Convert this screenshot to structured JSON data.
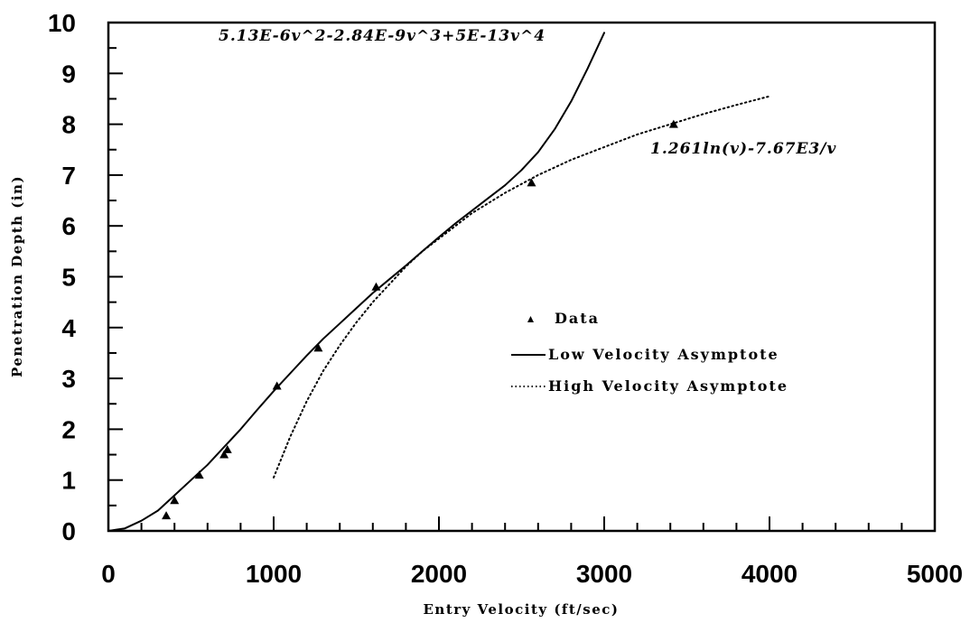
{
  "chart_data": {
    "type": "scatter",
    "xlabel": "Entry Velocity (ft/sec)",
    "ylabel": "Penetration Depth (in)",
    "xlim": [
      0,
      5000
    ],
    "ylim": [
      0,
      10
    ],
    "x_ticks": [
      "0",
      "1000",
      "2000",
      "3000",
      "4000",
      "5000"
    ],
    "y_ticks": [
      "0",
      "1",
      "2",
      "3",
      "4",
      "5",
      "6",
      "7",
      "8",
      "9",
      "10"
    ],
    "grid": false,
    "legend_position": "center-right",
    "series": [
      {
        "name": "Data",
        "kind": "markers",
        "marker": "triangle",
        "x": [
          350,
          400,
          550,
          700,
          720,
          1020,
          1270,
          1620,
          2560,
          3420
        ],
        "y": [
          0.3,
          0.6,
          1.1,
          1.5,
          1.6,
          2.85,
          3.6,
          4.8,
          6.85,
          8.0
        ]
      },
      {
        "name": "Low Velocity Asymptote",
        "kind": "line",
        "style": "solid",
        "x": [
          0,
          100,
          200,
          300,
          400,
          500,
          600,
          700,
          800,
          900,
          1000,
          1100,
          1200,
          1300,
          1400,
          1500,
          1600,
          1700,
          1800,
          1900,
          2000,
          2100,
          2200,
          2300,
          2400,
          2500,
          2600,
          2700,
          2800,
          2900,
          3000
        ],
        "y": [
          0,
          0.05,
          0.2,
          0.4,
          0.7,
          1.0,
          1.3,
          1.65,
          2.0,
          2.38,
          2.75,
          3.1,
          3.45,
          3.78,
          4.08,
          4.38,
          4.68,
          4.95,
          5.22,
          5.5,
          5.78,
          6.05,
          6.3,
          6.55,
          6.8,
          7.1,
          7.45,
          7.9,
          8.45,
          9.1,
          9.8
        ]
      },
      {
        "name": "High Velocity Asymptote",
        "kind": "line",
        "style": "dotted",
        "x": [
          1000,
          1100,
          1200,
          1300,
          1400,
          1500,
          1600,
          1700,
          1800,
          1900,
          2000,
          2200,
          2400,
          2600,
          2800,
          3000,
          3200,
          3400,
          3600,
          3800,
          4000
        ],
        "y": [
          1.05,
          1.85,
          2.55,
          3.15,
          3.65,
          4.1,
          4.5,
          4.85,
          5.2,
          5.5,
          5.75,
          6.25,
          6.65,
          7.0,
          7.3,
          7.55,
          7.8,
          8.0,
          8.2,
          8.38,
          8.55
        ]
      }
    ],
    "annotations": [
      {
        "text": "5.13E-6v^2-2.84E-9v^3+5E-13v^4"
      },
      {
        "text": "1.261ln(v)-7.67E3/v"
      }
    ]
  }
}
